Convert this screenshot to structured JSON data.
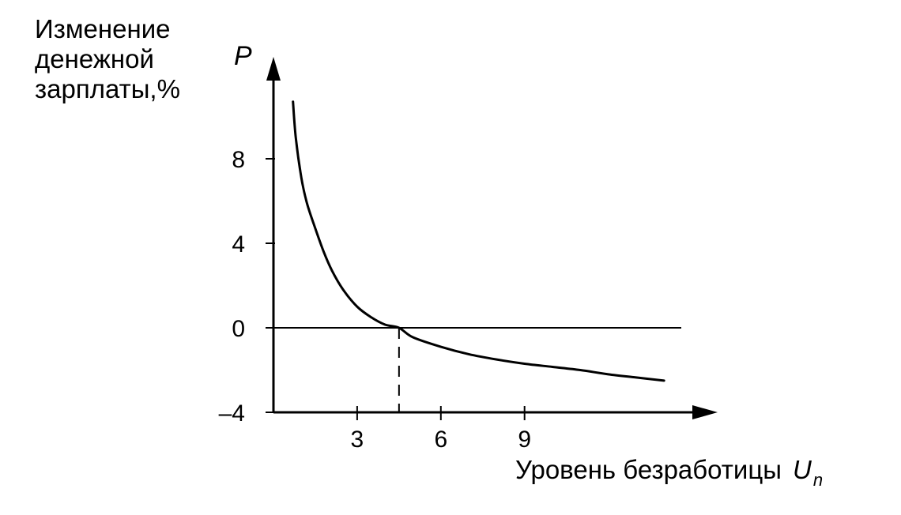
{
  "chart_data": {
    "type": "line",
    "ylabel_lines": [
      "Изменение",
      "денежной",
      "зарплаты,%"
    ],
    "y_symbol": "P",
    "xlabel": "Уровень безработицы",
    "x_symbol": "U",
    "x_symbol_sub": "n",
    "xlim": [
      0,
      15
    ],
    "ylim": [
      -4,
      12
    ],
    "x_ticks": [
      {
        "value": 3,
        "label": "3"
      },
      {
        "value": 6,
        "label": "6"
      },
      {
        "value": 9,
        "label": "9"
      }
    ],
    "y_ticks": [
      {
        "value": 8,
        "label": "8"
      },
      {
        "value": 4,
        "label": "4"
      },
      {
        "value": 0,
        "label": "0"
      },
      {
        "value": -4,
        "label": "–4"
      }
    ],
    "zero_line": true,
    "reference_x": 4.5,
    "series": [
      {
        "x": [
          0.7,
          0.8,
          1.0,
          1.2,
          1.5,
          1.8,
          2.1,
          2.5,
          3.0,
          3.5,
          4.0,
          4.5,
          5.0,
          6.0,
          7.0,
          8.0,
          9.0,
          10.0,
          11.0,
          12.0,
          13.0,
          14.0
        ],
        "y": [
          10.7,
          9.0,
          7.1,
          5.9,
          4.7,
          3.6,
          2.7,
          1.8,
          1.0,
          0.5,
          0.15,
          0.0,
          -0.45,
          -0.9,
          -1.25,
          -1.5,
          -1.7,
          -1.85,
          -2.0,
          -2.2,
          -2.35,
          -2.5
        ]
      }
    ]
  }
}
